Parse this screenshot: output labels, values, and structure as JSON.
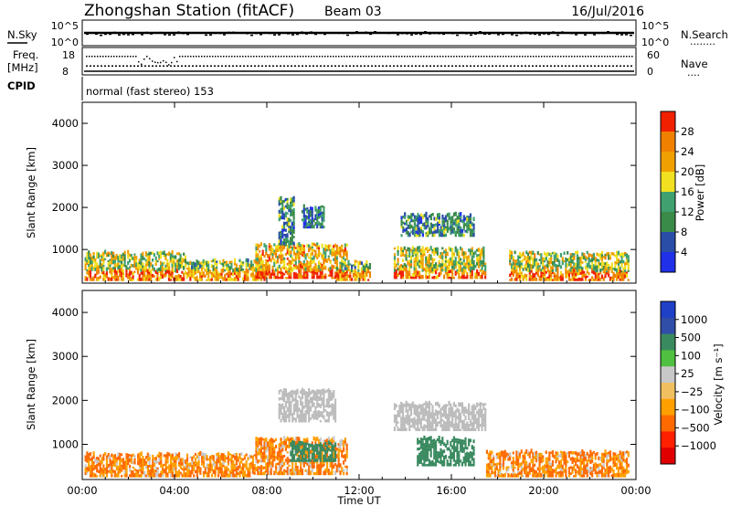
{
  "header": {
    "station": "Zhongshan Station (fitACF)",
    "beam": "Beam 03",
    "date": "16/Jul/2016"
  },
  "noise_panel": {
    "left_label": "N.Sky",
    "right_label": "N.Search",
    "ticks_left": [
      "10^5",
      "10^0"
    ],
    "ticks_right": [
      "10^5",
      "10^0"
    ],
    "dots_label": "........"
  },
  "freq_panel": {
    "left_label_1": "Freq.",
    "left_label_2": "[MHz]",
    "right_label": "Nave",
    "ticks_left": [
      "18",
      "8"
    ],
    "ticks_right": [
      "60",
      "0"
    ],
    "dots_label": "....",
    "freq_mhz_approx": 11.5,
    "nave_approx": 42
  },
  "cpid": {
    "label": "CPID",
    "value": "normal (fast stereo) 153"
  },
  "colors": {
    "power_scale": [
      "#2030e8",
      "#2a4ea8",
      "#3a8a4a",
      "#40a070",
      "#f0e020",
      "#f0a000",
      "#f08000",
      "#f02000"
    ],
    "velocity_scale": [
      "#e00000",
      "#ff2000",
      "#ff6a00",
      "#ffa000",
      "#f0c060",
      "#c8c8c8",
      "#50c040",
      "#3a8a60",
      "#304ea8",
      "#2040c8"
    ],
    "ground_scatter": "#bcbcbc"
  },
  "chart_data": [
    {
      "type": "heatmap",
      "panel": "power",
      "ylabel": "Slant Range [km]",
      "yticks": [
        "1000",
        "2000",
        "3000",
        "4000"
      ],
      "ylim": [
        200,
        4500
      ],
      "xlabel": "",
      "xticks": [
        "00:00",
        "04:00",
        "08:00",
        "12:00",
        "16:00",
        "20:00",
        "00:00"
      ],
      "xlim_hours": [
        0,
        24
      ],
      "colorbar": {
        "label": "Power [dB]",
        "ticks": [
          "28",
          "24",
          "20",
          "16",
          "12",
          "8",
          "4"
        ],
        "range": [
          0,
          30
        ]
      },
      "echo_regions": [
        {
          "t_start": 0.1,
          "t_end": 4.5,
          "r_min": 250,
          "r_max": 900,
          "level": 16
        },
        {
          "t_start": 4.5,
          "t_end": 8.0,
          "r_min": 250,
          "r_max": 700,
          "level": 14
        },
        {
          "t_start": 7.5,
          "t_end": 11.5,
          "r_min": 300,
          "r_max": 1100,
          "level": 20
        },
        {
          "t_start": 8.5,
          "t_end": 9.2,
          "r_min": 1100,
          "r_max": 2200,
          "level": 10
        },
        {
          "t_start": 9.5,
          "t_end": 10.5,
          "r_min": 1500,
          "r_max": 2000,
          "level": 8
        },
        {
          "t_start": 11.0,
          "t_end": 12.5,
          "r_min": 250,
          "r_max": 700,
          "level": 14
        },
        {
          "t_start": 13.5,
          "t_end": 17.5,
          "r_min": 300,
          "r_max": 1000,
          "level": 16
        },
        {
          "t_start": 13.8,
          "t_end": 17.0,
          "r_min": 1300,
          "r_max": 1800,
          "level": 10
        },
        {
          "t_start": 18.5,
          "t_end": 23.7,
          "r_min": 250,
          "r_max": 900,
          "level": 16
        }
      ]
    },
    {
      "type": "heatmap",
      "panel": "velocity",
      "ylabel": "Slant Range [km]",
      "yticks": [
        "1000",
        "2000",
        "3000",
        "4000"
      ],
      "ylim": [
        200,
        4500
      ],
      "xlabel": "Time UT",
      "xticks": [
        "00:00",
        "04:00",
        "08:00",
        "12:00",
        "16:00",
        "20:00",
        "00:00"
      ],
      "xlim_hours": [
        0,
        24
      ],
      "colorbar": {
        "label": "Velocity [m s⁻¹]",
        "ticks": [
          "1000",
          "500",
          "100",
          "25",
          "−25",
          "−100",
          "−500",
          "−1000"
        ],
        "range": [
          -1000,
          1000
        ]
      },
      "echo_regions": [
        {
          "t_start": 0.1,
          "t_end": 7.5,
          "r_min": 250,
          "r_max": 750,
          "velocity": -100
        },
        {
          "t_start": 7.5,
          "t_end": 11.5,
          "r_min": 300,
          "r_max": 1100,
          "velocity": -100
        },
        {
          "t_start": 8.5,
          "t_end": 11.0,
          "r_min": 1500,
          "r_max": 2200,
          "velocity": 0
        },
        {
          "t_start": 9.0,
          "t_end": 11.0,
          "r_min": 600,
          "r_max": 1000,
          "velocity": 300
        },
        {
          "t_start": 13.5,
          "t_end": 17.5,
          "r_min": 1300,
          "r_max": 1900,
          "velocity": 0
        },
        {
          "t_start": 14.5,
          "t_end": 17.0,
          "r_min": 500,
          "r_max": 1100,
          "velocity": 300
        },
        {
          "t_start": 17.5,
          "t_end": 23.7,
          "r_min": 250,
          "r_max": 800,
          "velocity": -100
        }
      ]
    }
  ]
}
